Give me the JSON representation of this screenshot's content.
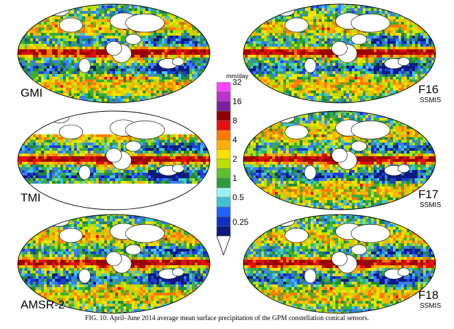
{
  "figure": {
    "panels": [
      {
        "label": "GMI",
        "sublabel": "",
        "coverage": "global"
      },
      {
        "label": "F16",
        "sublabel": "SSMIS",
        "coverage": "global"
      },
      {
        "label": "TMI",
        "sublabel": "",
        "coverage": "tropics"
      },
      {
        "label": "F17",
        "sublabel": "SSMIS",
        "coverage": "global"
      },
      {
        "label": "AMSR-2",
        "sublabel": "",
        "coverage": "global"
      },
      {
        "label": "F18",
        "sublabel": "SSMIS",
        "coverage": "global"
      }
    ],
    "colorbar": {
      "unit": "mm/day",
      "ticks": [
        "32",
        "16",
        "8",
        "4",
        "2",
        "1",
        "0.5",
        "0.25"
      ],
      "colors": [
        "#ff44ff",
        "#bb33cc",
        "#7a1fa0",
        "#8b0000",
        "#e81010",
        "#ff7a00",
        "#ffb000",
        "#ffe000",
        "#b8e000",
        "#5cc02c",
        "#2e9a3a",
        "#9af0f0",
        "#40c0d0",
        "#2060ff",
        "#1030c0",
        "#0a1a80",
        "#ffffff"
      ]
    },
    "caption": "FIG. 10. April–June 2014 average mean surface precipitation of the GPM constellation conical sensors."
  }
}
